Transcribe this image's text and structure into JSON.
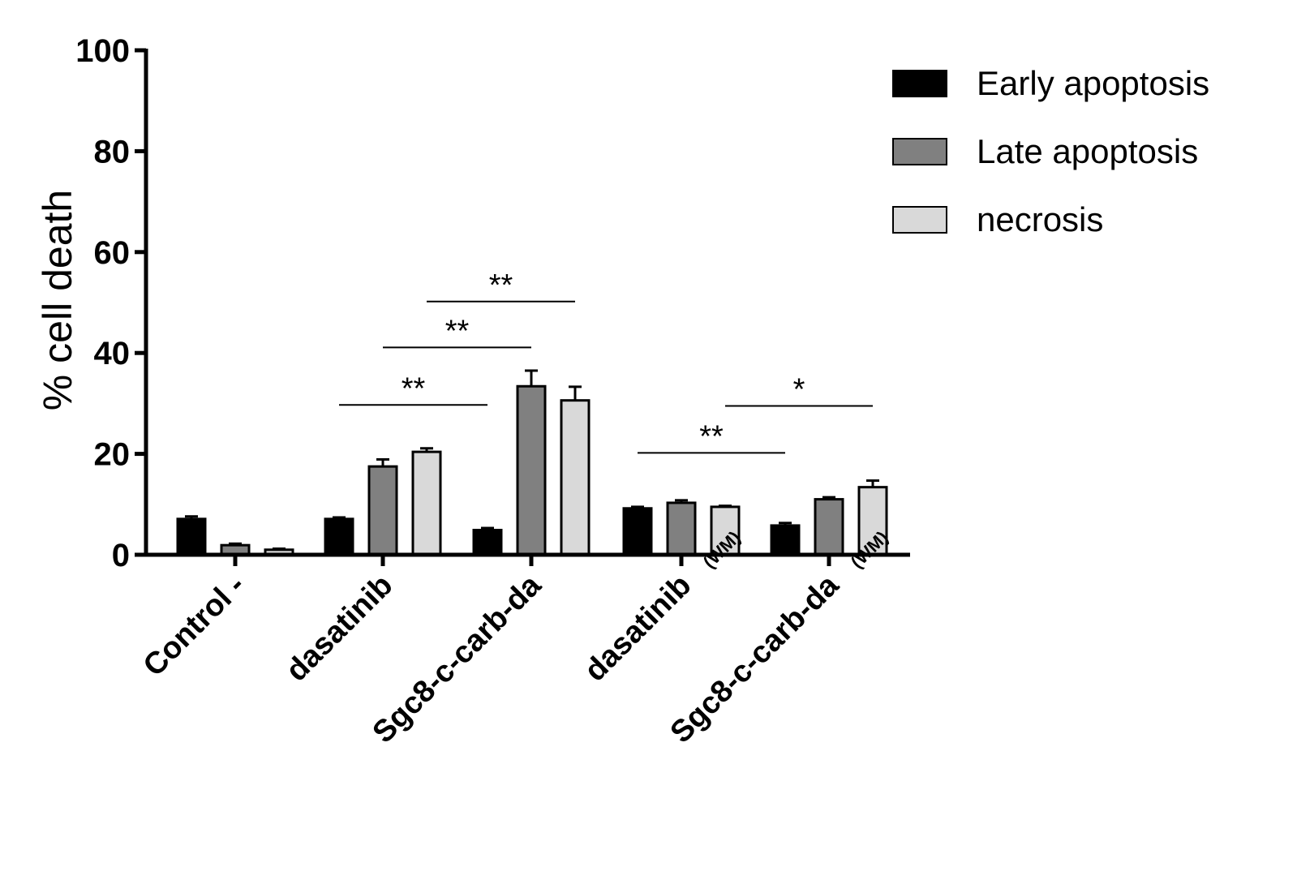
{
  "chart_data": {
    "type": "bar",
    "title": "",
    "xlabel": "",
    "ylabel": "% cell death",
    "ylim": [
      0,
      100
    ],
    "yticks": [
      0,
      20,
      40,
      60,
      80,
      100
    ],
    "grid": false,
    "legend_placement": "top-right",
    "categories": [
      {
        "label": "Control -",
        "suffix": ""
      },
      {
        "label": "dasatinib",
        "suffix": ""
      },
      {
        "label": "Sgc8-c-carb-da",
        "suffix": ""
      },
      {
        "label": "dasatinib",
        "suffix": "(WM)"
      },
      {
        "label": "Sgc8-c-carb-da",
        "suffix": "(WM)"
      }
    ],
    "series": [
      {
        "name": "Early apoptosis",
        "color": "#000000",
        "values": [
          7.1,
          7.1,
          4.9,
          9.2,
          5.8
        ],
        "errors": [
          0.5,
          0.3,
          0.4,
          0.3,
          0.5
        ]
      },
      {
        "name": "Late apoptosis",
        "color": "#808080",
        "values": [
          1.9,
          17.5,
          33.4,
          10.3,
          11.0
        ],
        "errors": [
          0.3,
          1.4,
          3.1,
          0.5,
          0.4
        ]
      },
      {
        "name": "necrosis",
        "color": "#d9d9d9",
        "values": [
          1.0,
          20.4,
          30.6,
          9.5,
          13.4
        ],
        "errors": [
          0.2,
          0.7,
          2.7,
          0.2,
          1.3
        ]
      }
    ],
    "annotations": [
      {
        "text": "**",
        "series": 0,
        "from_category": 1,
        "to_category": 2,
        "y": 29.7
      },
      {
        "text": "**",
        "series": 1,
        "from_category": 1,
        "to_category": 2,
        "y": 41.1
      },
      {
        "text": "**",
        "series": 2,
        "from_category": 1,
        "to_category": 2,
        "y": 50.2
      },
      {
        "text": "**",
        "series": 0,
        "from_category": 3,
        "to_category": 4,
        "y": 20.2
      },
      {
        "text": "*",
        "series": 2,
        "from_category": 3,
        "to_category": 4,
        "y": 29.5
      }
    ]
  }
}
